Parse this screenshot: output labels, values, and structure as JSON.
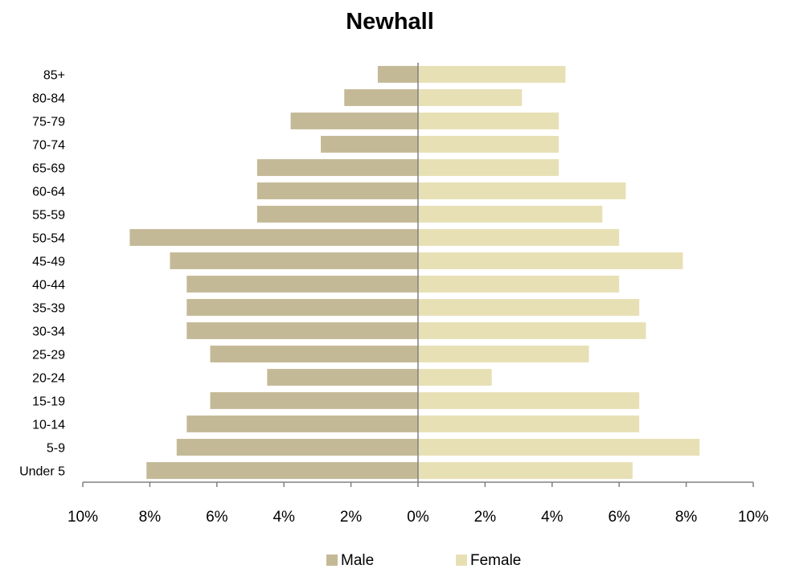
{
  "chart_data": {
    "type": "bar",
    "orientation": "horizontal",
    "subtype": "population-pyramid",
    "title": "Newhall",
    "xlabel": "",
    "ylabel": "",
    "categories": [
      "Under 5",
      "5-9",
      "10-14",
      "15-19",
      "20-24",
      "25-29",
      "30-34",
      "35-39",
      "40-44",
      "45-49",
      "50-54",
      "55-59",
      "60-64",
      "65-69",
      "70-74",
      "75-79",
      "80-84",
      "85+"
    ],
    "series": [
      {
        "name": "Male",
        "color": "#c4b996",
        "side": "left",
        "values": [
          8.1,
          7.2,
          6.9,
          6.2,
          4.5,
          6.2,
          6.9,
          6.9,
          6.9,
          7.4,
          8.6,
          4.8,
          4.8,
          4.8,
          2.9,
          3.8,
          2.2,
          1.2
        ]
      },
      {
        "name": "Female",
        "color": "#e8e0b5",
        "side": "right",
        "values": [
          6.4,
          8.4,
          6.6,
          6.6,
          2.2,
          5.1,
          6.8,
          6.6,
          6.0,
          7.9,
          6.0,
          5.5,
          6.2,
          4.2,
          4.2,
          4.2,
          3.1,
          4.4
        ]
      }
    ],
    "xlim": [
      -10,
      10
    ],
    "xticks": [
      -10,
      -8,
      -6,
      -4,
      -2,
      0,
      2,
      4,
      6,
      8,
      10
    ],
    "xtick_labels": [
      "10%",
      "8%",
      "6%",
      "4%",
      "2%",
      "0%",
      "2%",
      "4%",
      "6%",
      "8%",
      "10%"
    ],
    "grid": false,
    "legend_position": "bottom",
    "axis_color": "#808080"
  }
}
